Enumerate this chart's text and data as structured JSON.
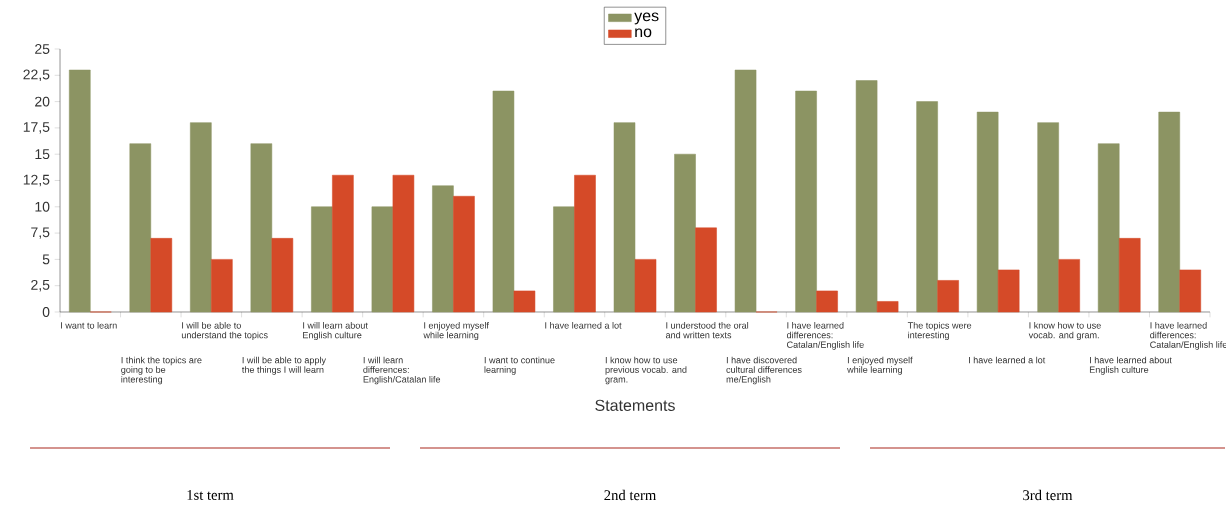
{
  "chart_data": {
    "type": "bar",
    "xlabel": "Statements",
    "categories": [
      "I want to learn",
      "I think the topics are going to be interesting",
      "I will be able to understand the topics",
      "I will be able to apply the things I will learn",
      "I will learn about English culture",
      "I will learn differences: English/Catalan life",
      "I enjoyed myself while learning",
      "I want to continue learning",
      "I have learned a lot",
      "I know how to use previous vocab. and gram.",
      "I understood the oral and written texts",
      "I have discovered cultural differences me/English",
      "I have learned differences: Catalan/English life",
      "I enjoyed myself while learning",
      "The topics were interesting",
      "I have learned a lot",
      "I know how to use vocab. and gram.",
      "I have learned about English culture",
      "I have learned differences: Catalan/English life"
    ],
    "series": [
      {
        "name": "yes",
        "color": "#8c9463",
        "values": [
          23,
          16,
          18,
          16,
          10,
          10,
          12,
          21,
          10,
          18,
          15,
          23,
          21,
          22,
          20,
          19,
          18,
          16,
          19
        ]
      },
      {
        "name": "no",
        "color": "#d54a28",
        "values": [
          0,
          7,
          5,
          7,
          13,
          13,
          11,
          2,
          13,
          5,
          8,
          0,
          2,
          1,
          3,
          4,
          5,
          7,
          4
        ]
      }
    ],
    "ylim": [
      0,
      25
    ],
    "yticks": [
      0,
      {
        "value": 2.5,
        "label": "2,5"
      },
      5,
      {
        "value": 7.5,
        "label": "7,5"
      },
      10,
      {
        "value": 12.5,
        "label": "12,5"
      },
      15,
      {
        "value": 17.5,
        "label": "17,5"
      },
      20,
      {
        "value": 22.5,
        "label": "22,5"
      },
      25
    ],
    "legend": "top",
    "grid": false,
    "annotations": [
      "1st term",
      "2nd term",
      "3rd term"
    ]
  }
}
